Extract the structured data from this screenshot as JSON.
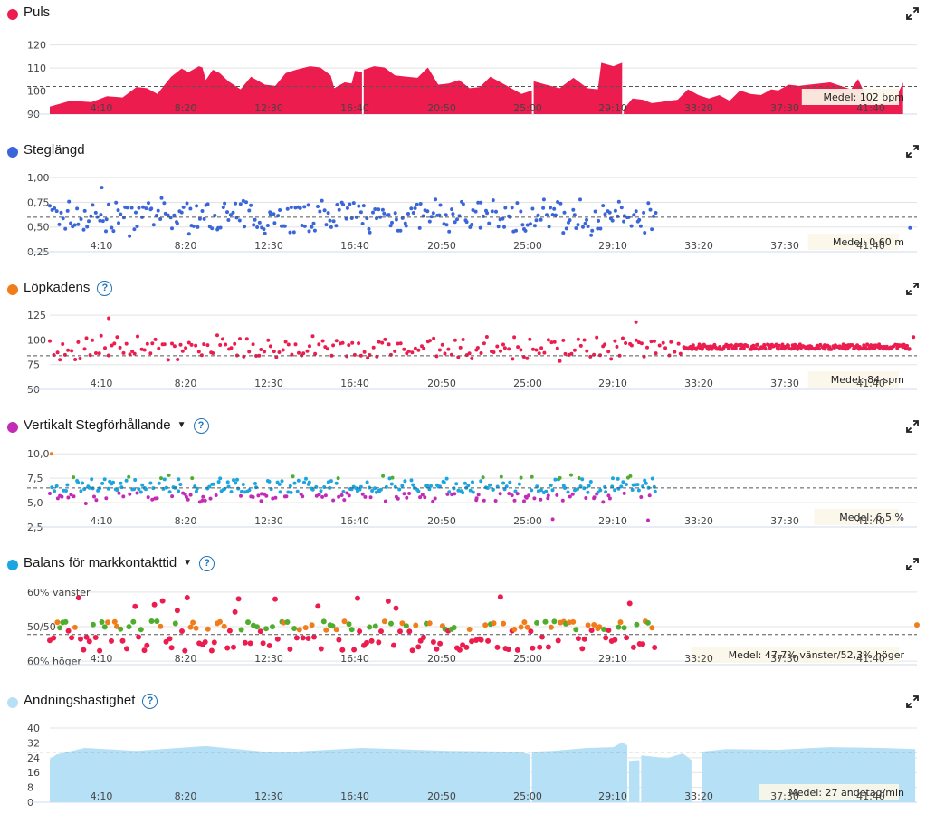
{
  "chart_data": [
    {
      "type": "area",
      "title": "Puls",
      "color": "#ec1c4e",
      "help": false,
      "caret": false,
      "yticks": [
        90,
        100,
        110,
        120
      ],
      "ytick_labels": [
        "90",
        "100",
        "110",
        "120"
      ],
      "ylim": [
        90,
        123
      ],
      "x_tick_labels": [
        "4:10",
        "8:20",
        "12:30",
        "16:40",
        "20:50",
        "25:00",
        "29:10",
        "33:20",
        "37:30",
        "41:40"
      ],
      "average": 102,
      "average_label": "Medel: 102 bpm",
      "segments": [
        {
          "x": [
            0,
            120,
            240,
            330,
            420,
            500,
            560,
            620,
            700,
            760,
            800,
            860,
            880,
            900,
            940,
            980,
            1030,
            1100,
            1160,
            1240,
            1300,
            1360,
            1420,
            1500,
            1560,
            1620,
            1640,
            1700,
            1740,
            1760,
            1800
          ],
          "y": [
            93,
            96,
            95,
            98,
            97,
            102,
            101,
            99,
            106,
            110,
            108,
            111,
            110,
            105,
            109,
            108,
            104,
            101,
            106,
            103,
            102,
            108,
            109,
            111,
            110,
            107,
            101,
            104,
            103,
            109,
            108
          ]
        },
        {
          "x": [
            1810,
            1870,
            1930,
            1990,
            2060,
            2120,
            2180,
            2240,
            2300,
            2360,
            2420,
            2480,
            2540,
            2600,
            2660,
            2720,
            2780
          ],
          "y": [
            109,
            111,
            110,
            107,
            106,
            106,
            110,
            103,
            103,
            105,
            101,
            102,
            106,
            104,
            101,
            99,
            100
          ]
        },
        {
          "x": [
            2790,
            2860,
            2940,
            3020,
            3100,
            3160,
            3180,
            3250,
            3300
          ],
          "y": [
            104,
            103,
            101,
            106,
            101,
            101,
            112,
            111,
            112
          ]
        },
        {
          "x": [
            3310,
            3360,
            3420,
            3470,
            3520,
            3570,
            3620,
            3680,
            3740,
            3800,
            3860,
            3920,
            3980,
            4040,
            4100,
            4160,
            4200,
            4260,
            4320,
            4380,
            4440,
            4500,
            4560,
            4620,
            4660,
            4700,
            4760,
            4840,
            4880,
            4920
          ],
          "y": [
            92,
            97,
            96,
            95,
            95,
            96,
            96,
            101,
            98,
            97,
            98,
            96,
            100,
            99,
            98,
            101,
            100,
            103,
            102,
            103,
            103,
            104,
            102,
            101,
            105,
            99,
            94,
            96,
            97,
            104
          ]
        }
      ]
    },
    {
      "type": "scatter",
      "title": "Steglängd",
      "color": "#3a66da",
      "help": false,
      "caret": false,
      "yticks": [
        0.25,
        0.5,
        0.75,
        1.0
      ],
      "ytick_labels": [
        "0,25",
        "0,50",
        "0,75",
        "1,00"
      ],
      "ylim": [
        0.25,
        1.02
      ],
      "x_tick_labels": [
        "4:10",
        "8:20",
        "12:30",
        "16:40",
        "20:50",
        "25:00",
        "29:10",
        "33:20",
        "37:30",
        "41:40"
      ],
      "average": 0.6,
      "average_label": "Medel: 0,60 m",
      "ranges": [
        [
          0,
          3500
        ]
      ],
      "center": 0.6,
      "spread": 0.2,
      "n": 300,
      "seed": 7,
      "extra_points": [
        [
          300,
          0.9
        ],
        [
          4960,
          0.49
        ]
      ]
    },
    {
      "type": "scatter",
      "title": "Löpkadens",
      "color": "#f07c1a",
      "point_color": "#ec1c4e",
      "help": true,
      "caret": false,
      "yticks": [
        50,
        75,
        100,
        125
      ],
      "ytick_labels": [
        "50",
        "75",
        "100",
        "125"
      ],
      "ylim": [
        50,
        127
      ],
      "x_tick_labels": [
        "4:10",
        "8:20",
        "12:30",
        "16:40",
        "20:50",
        "25:00",
        "29:10",
        "33:20",
        "37:30",
        "41:40"
      ],
      "average": 84,
      "average_label": "Medel: 84 spm",
      "ranges": [
        [
          0,
          3650
        ],
        [
          3650,
          4960
        ]
      ],
      "center": 92,
      "spread": 14,
      "n": 420,
      "seed": 21,
      "extra_points": [
        [
          340,
          122
        ],
        [
          3380,
          118
        ],
        [
          4980,
          103
        ]
      ]
    },
    {
      "type": "scatter",
      "title": "Vertikalt Stegförhållande",
      "color": "#c22cb5",
      "help": true,
      "caret": true,
      "yticks": [
        2.5,
        5.0,
        7.5,
        10.0
      ],
      "ytick_labels": [
        "2,5",
        "5,0",
        "7,5",
        "10,0"
      ],
      "ylim": [
        2.5,
        10.3
      ],
      "x_tick_labels": [
        "4:10",
        "8:20",
        "12:30",
        "16:40",
        "20:50",
        "25:00",
        "29:10",
        "33:20",
        "37:30",
        "41:40"
      ],
      "average": 6.5,
      "average_label": "Medel: 6,5 %",
      "band_colors": [
        "#c22cb5",
        "#1aa6e0",
        "#4fad2d",
        "#f07c1a"
      ],
      "band_limits": [
        6.0,
        7.5,
        8.6
      ],
      "ranges": [
        [
          0,
          3500
        ]
      ],
      "center": 6.4,
      "spread": 1.5,
      "n": 330,
      "seed": 33,
      "extra_points": [
        [
          10,
          10.0
        ],
        [
          2900,
          3.3
        ],
        [
          3450,
          3.2
        ]
      ]
    },
    {
      "type": "scatter",
      "title": "Balans för markkontakttid",
      "color": "#1aa6e0",
      "help": true,
      "caret": true,
      "yticks": [
        60,
        50,
        40
      ],
      "ytick_labels": [
        "60% vänster",
        "50/50",
        "60% höger"
      ],
      "ylim": [
        39,
        61
      ],
      "x_tick_labels": [
        "4:10",
        "8:20",
        "12:30",
        "16:40",
        "20:50",
        "25:00",
        "29:10",
        "33:20",
        "37:30",
        "41:40"
      ],
      "average": 47.7,
      "average_label": "Medel: 47,7% vänster/52,3% höger",
      "ranges": [
        [
          0,
          3500
        ]
      ],
      "n": 200,
      "seed": 44,
      "extra_points": [
        [
          5000,
          50.5
        ]
      ]
    },
    {
      "type": "area",
      "title": "Andningshastighet",
      "color": "#b6e0f5",
      "help": true,
      "caret": false,
      "yticks": [
        0,
        8,
        16,
        24,
        32,
        40
      ],
      "ytick_labels": [
        "0",
        "8",
        "16",
        "24",
        "32",
        "40"
      ],
      "ylim": [
        0,
        41
      ],
      "x_tick_labels": [
        "4:10",
        "8:20",
        "12:30",
        "16:40",
        "20:50",
        "25:00",
        "29:10",
        "33:20",
        "37:30",
        "41:40"
      ],
      "average": 27,
      "average_label": "Medel: 27 andetag/min",
      "segments": [
        {
          "x": [
            0,
            40,
            200,
            500,
            900,
            1300,
            1800,
            2300,
            2700,
            2770
          ],
          "y": [
            23,
            26,
            29,
            28,
            30,
            27,
            29,
            28,
            27,
            26
          ]
        },
        {
          "x": [
            2780,
            2900,
            3100,
            3250,
            3300,
            3330
          ],
          "y": [
            27,
            28,
            29,
            30,
            32,
            31
          ]
        },
        {
          "x": [
            3340,
            3400
          ],
          "y": [
            22,
            23
          ]
        },
        {
          "x": [
            3410,
            3560,
            3650,
            3700
          ],
          "y": [
            25,
            24,
            26,
            23
          ]
        },
        {
          "x": [
            3760,
            3900,
            4200,
            4500,
            4800,
            4990
          ],
          "y": [
            27,
            29,
            28,
            30,
            29,
            29
          ]
        }
      ]
    }
  ]
}
